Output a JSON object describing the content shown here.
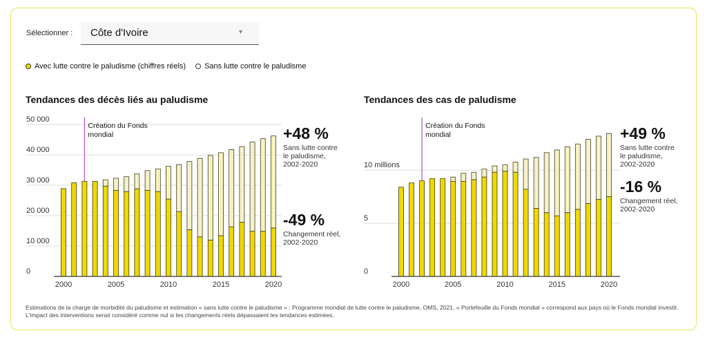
{
  "selector": {
    "label": "Sélectionner :",
    "value": "Côte d'Ivoire"
  },
  "legend": {
    "with": "Avec lutte contre le paludisme (chiffres réels)",
    "without": "Sans lutte contre le paludisme"
  },
  "colors": {
    "real": "#f0d800",
    "counterfactual": "#fbf7d2",
    "stroke": "#3b3a1e",
    "marker": "#b04fc0",
    "frame": "#e8e25a"
  },
  "footnote": "Estimations de la charge de morbidité du paludisme et estimation « sans lutte contre le paludisme » : Programme mondial de lutte contre le paludisme, OMS, 2021. « Portefeuille du Fonds mondial » correspond aux pays où le Fonds mondial investit. L'impact des interventions serait considéré comme nul si les changements réels dépassaient les tendances estimées.",
  "chart_data": [
    {
      "type": "bar",
      "title": "Tendances des décès liés au paludisme",
      "x": [
        2000,
        2001,
        2002,
        2003,
        2004,
        2005,
        2006,
        2007,
        2008,
        2009,
        2010,
        2011,
        2012,
        2013,
        2014,
        2015,
        2016,
        2017,
        2018,
        2019,
        2020
      ],
      "series": [
        {
          "name": "Avec lutte contre le paludisme (chiffres réels)",
          "values": [
            28900,
            30800,
            31300,
            31300,
            29700,
            28300,
            27900,
            28800,
            28300,
            27900,
            25400,
            21300,
            15300,
            13000,
            11900,
            13400,
            16300,
            17800,
            14900,
            14900,
            15900
          ]
        },
        {
          "name": "Sans lutte contre le paludisme",
          "values": [
            28900,
            30800,
            31300,
            31300,
            31800,
            32300,
            32800,
            33700,
            34800,
            35300,
            36200,
            36800,
            37800,
            38800,
            39800,
            40700,
            41700,
            42700,
            44200,
            45300,
            46200
          ]
        }
      ],
      "ylim": [
        0,
        50000
      ],
      "yticks": [
        "0",
        "10 000",
        "20 000",
        "30 000",
        "40 000",
        "50 000"
      ],
      "xticks": [
        "2000",
        "2005",
        "2010",
        "2015",
        "2020"
      ],
      "marker": {
        "year": 2002,
        "label": [
          "Création du Fonds",
          "mondial"
        ]
      },
      "annotations": [
        {
          "value": "+48 %",
          "lines": [
            "Sans lutte contre",
            "le paludisme,",
            "2002-2020"
          ]
        },
        {
          "value": "-49 %",
          "lines": [
            "Changement réel,",
            "2002-2020"
          ]
        }
      ],
      "grid": true
    },
    {
      "type": "bar",
      "title": "Tendances des cas de paludisme",
      "x": [
        2000,
        2001,
        2002,
        2003,
        2004,
        2005,
        2006,
        2007,
        2008,
        2009,
        2010,
        2011,
        2012,
        2013,
        2014,
        2015,
        2016,
        2017,
        2018,
        2019,
        2020
      ],
      "series": [
        {
          "name": "Avec lutte contre le paludisme (chiffres réels)",
          "values": [
            8.4,
            8.8,
            9.0,
            9.2,
            9.2,
            8.95,
            8.95,
            9.1,
            9.35,
            9.8,
            9.9,
            9.8,
            8.2,
            6.4,
            6.0,
            5.7,
            6.0,
            6.3,
            6.85,
            7.25,
            7.5
          ]
        },
        {
          "name": "Sans lutte contre le paludisme",
          "values": [
            8.4,
            8.8,
            9.0,
            9.2,
            9.2,
            9.35,
            9.7,
            9.8,
            10.1,
            10.4,
            10.5,
            10.75,
            11.05,
            11.2,
            11.65,
            11.9,
            12.2,
            12.45,
            12.9,
            13.2,
            13.45
          ]
        }
      ],
      "ylim": [
        0,
        14.5
      ],
      "yunit": "millions",
      "yticks": [
        "0",
        "5",
        "10 millions"
      ],
      "xticks": [
        "2000",
        "2005",
        "2010",
        "2015",
        "2020"
      ],
      "marker": {
        "year": 2002,
        "label": [
          "Création du Fonds",
          "mondial"
        ]
      },
      "annotations": [
        {
          "value": "+49 %",
          "lines": [
            "Sans lutte contre",
            "le paludisme,",
            "2002-2020"
          ]
        },
        {
          "value": "-16 %",
          "lines": [
            "Changement réel,",
            "2002-2020"
          ]
        }
      ],
      "grid": true
    }
  ]
}
